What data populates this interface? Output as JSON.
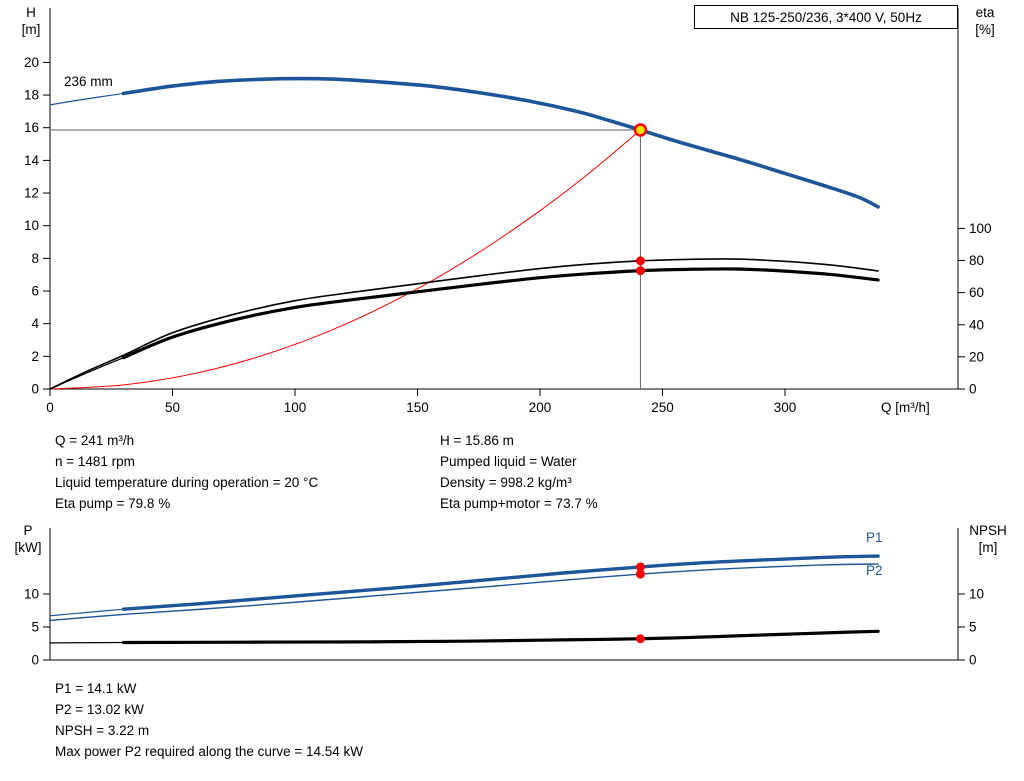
{
  "colors": {
    "curve_blue": "#1c5599",
    "curve_black": "#000000",
    "curve_red": "#ff0000",
    "marker": "#ff0000",
    "duty_fill": "#ffe600",
    "crosshair": "#666666"
  },
  "header": {
    "title_box": "NB 125-250/236, 3*400 V, 50Hz"
  },
  "top_chart_labels": {
    "y_left_1": "H",
    "y_left_2": "[m]",
    "y_right_1": "eta",
    "y_right_2": "[%]",
    "x_axis": "Q [m³/h]",
    "impeller": "236 mm"
  },
  "bottom_chart_labels": {
    "y_left_1": "P",
    "y_left_2": "[kW]",
    "y_right_1": "NPSH",
    "y_right_2": "[m]",
    "p1": "P1",
    "p2": "P2"
  },
  "operating_point_info": {
    "left": [
      "Q = 241 m³/h",
      "n = 1481 rpm",
      "Liquid temperature during operation = 20 °C",
      "Eta pump = 79.8 %"
    ],
    "right": [
      "H = 15.86 m",
      "Pumped liquid = Water",
      "Density = 998.2 kg/m³",
      "Eta pump+motor = 73.7 %"
    ]
  },
  "power_info": [
    "P1 = 14.1 kW",
    "P2 = 13.02 kW",
    "NPSH = 3.22 m",
    "Max power P2 required along the curve = 14.54 kW"
  ],
  "chart_data": [
    {
      "type": "line",
      "title": "QH and efficiency curves, NB 125-250/236",
      "xlabel": "Q [m³/h]",
      "ylabel_left": "H [m]",
      "ylabel_right": "eta [%]",
      "xlim": [
        0,
        370
      ],
      "ylim_left": [
        0,
        23.3
      ],
      "ylim_right": [
        0,
        237
      ],
      "x_ticks": [
        0,
        50,
        100,
        150,
        200,
        250,
        300
      ],
      "y_left_ticks": [
        0,
        2,
        4,
        6,
        8,
        10,
        12,
        14,
        16,
        18,
        20
      ],
      "y_right_ticks": [
        0,
        20,
        40,
        60,
        80,
        100
      ],
      "annotation": "236 mm",
      "series": [
        {
          "name": "qh-curve-lead",
          "axis": "left",
          "color": "#1c5599",
          "width": 1.2,
          "points": [
            [
              0,
              17.4
            ],
            [
              10,
              17.65
            ],
            [
              20,
              17.88
            ],
            [
              30,
              18.1
            ]
          ]
        },
        {
          "name": "qh-curve-236mm",
          "axis": "left",
          "color": "#1c5599",
          "width": 3.6,
          "points": [
            [
              30,
              18.1
            ],
            [
              50,
              18.55
            ],
            [
              70,
              18.85
            ],
            [
              95,
              19.0
            ],
            [
              115,
              18.98
            ],
            [
              135,
              18.8
            ],
            [
              155,
              18.55
            ],
            [
              175,
              18.15
            ],
            [
              195,
              17.65
            ],
            [
              215,
              17.0
            ],
            [
              228,
              16.45
            ],
            [
              241,
              15.86
            ],
            [
              255,
              15.2
            ],
            [
              270,
              14.55
            ],
            [
              285,
              13.9
            ],
            [
              300,
              13.2
            ],
            [
              315,
              12.5
            ],
            [
              330,
              11.75
            ],
            [
              338,
              11.15
            ]
          ]
        },
        {
          "name": "system-curve",
          "axis": "left",
          "color": "#ff0000",
          "width": 1,
          "points": [
            [
              0,
              0
            ],
            [
              30,
              0.25
            ],
            [
              60,
              0.98
            ],
            [
              90,
              2.21
            ],
            [
              120,
              3.93
            ],
            [
              150,
              6.14
            ],
            [
              175,
              8.36
            ],
            [
              200,
              10.92
            ],
            [
              220,
              13.21
            ],
            [
              241,
              15.86
            ]
          ]
        },
        {
          "name": "eta-pump-curve",
          "axis": "right",
          "color": "#000000",
          "width": 1.6,
          "points": [
            [
              0,
              0
            ],
            [
              15,
              11
            ],
            [
              30,
              21
            ],
            [
              50,
              35
            ],
            [
              75,
              46.5
            ],
            [
              100,
              55
            ],
            [
              125,
              60.5
            ],
            [
              150,
              65.5
            ],
            [
              175,
              70.5
            ],
            [
              200,
              75
            ],
            [
              220,
              77.8
            ],
            [
              241,
              79.8
            ],
            [
              260,
              80.7
            ],
            [
              280,
              80.9
            ],
            [
              300,
              79.5
            ],
            [
              320,
              77
            ],
            [
              338,
              73.5
            ]
          ]
        },
        {
          "name": "eta-pump-motor-lead",
          "axis": "right",
          "color": "#000000",
          "width": 1.2,
          "points": [
            [
              0,
              0
            ],
            [
              15,
              10
            ],
            [
              30,
              19.5
            ]
          ]
        },
        {
          "name": "eta-pump-motor-curve",
          "axis": "right",
          "color": "#000000",
          "width": 3.2,
          "points": [
            [
              30,
              19.5
            ],
            [
              50,
              32.3
            ],
            [
              75,
              43
            ],
            [
              100,
              50.8
            ],
            [
              125,
              55.9
            ],
            [
              150,
              60.5
            ],
            [
              175,
              65.1
            ],
            [
              200,
              69.3
            ],
            [
              220,
              71.8
            ],
            [
              241,
              73.7
            ],
            [
              260,
              74.5
            ],
            [
              280,
              74.7
            ],
            [
              300,
              73.4
            ],
            [
              320,
              71.1
            ],
            [
              338,
              67.9
            ]
          ]
        }
      ],
      "markers": [
        {
          "name": "duty-point",
          "q": 241,
          "value": 15.86,
          "axis": "left",
          "style": "duty"
        },
        {
          "name": "eta-pump-point",
          "q": 241,
          "value": 79.8,
          "axis": "right",
          "style": "dot"
        },
        {
          "name": "eta-pump-motor-point",
          "q": 241,
          "value": 73.7,
          "axis": "right",
          "style": "dot"
        }
      ]
    },
    {
      "type": "line",
      "title": "Power and NPSH curves",
      "xlabel": "Q [m³/h]",
      "ylabel_left": "P [kW]",
      "ylabel_right": "NPSH [m]",
      "xlim": [
        0,
        370
      ],
      "ylim_left": [
        0,
        20
      ],
      "ylim_right": [
        0,
        20
      ],
      "x_ticks": [],
      "y_left_ticks": [
        0,
        5,
        10
      ],
      "y_right_ticks": [
        0,
        5,
        10
      ],
      "series": [
        {
          "name": "p1-curve-lead",
          "axis": "left",
          "color": "#1c5599",
          "width": 1.2,
          "points": [
            [
              0,
              6.7
            ],
            [
              15,
              7.2
            ],
            [
              30,
              7.7
            ]
          ]
        },
        {
          "name": "p1-curve",
          "axis": "left",
          "color": "#1c5599",
          "width": 3.4,
          "points": [
            [
              30,
              7.7
            ],
            [
              60,
              8.5
            ],
            [
              100,
              9.7
            ],
            [
              140,
              10.9
            ],
            [
              180,
              12.2
            ],
            [
              210,
              13.2
            ],
            [
              241,
              14.1
            ],
            [
              270,
              14.8
            ],
            [
              300,
              15.3
            ],
            [
              320,
              15.6
            ],
            [
              338,
              15.75
            ]
          ]
        },
        {
          "name": "p2-curve",
          "axis": "left",
          "color": "#1c5599",
          "width": 1.4,
          "points": [
            [
              0,
              6.0
            ],
            [
              30,
              6.9
            ],
            [
              60,
              7.65
            ],
            [
              100,
              8.75
            ],
            [
              140,
              9.95
            ],
            [
              180,
              11.15
            ],
            [
              210,
              12.1
            ],
            [
              241,
              13.02
            ],
            [
              270,
              13.7
            ],
            [
              300,
              14.2
            ],
            [
              320,
              14.45
            ],
            [
              338,
              14.54
            ]
          ]
        },
        {
          "name": "npsh-curve-lead",
          "axis": "right",
          "color": "#000000",
          "width": 1.2,
          "points": [
            [
              0,
              2.6
            ],
            [
              30,
              2.65
            ]
          ]
        },
        {
          "name": "npsh-curve",
          "axis": "right",
          "color": "#000000",
          "width": 3.2,
          "points": [
            [
              30,
              2.65
            ],
            [
              80,
              2.7
            ],
            [
              130,
              2.75
            ],
            [
              170,
              2.85
            ],
            [
              200,
              3.0
            ],
            [
              220,
              3.1
            ],
            [
              241,
              3.22
            ],
            [
              260,
              3.4
            ],
            [
              280,
              3.65
            ],
            [
              300,
              3.9
            ],
            [
              320,
              4.15
            ],
            [
              338,
              4.35
            ]
          ]
        }
      ],
      "markers": [
        {
          "name": "p1-point",
          "q": 241,
          "value": 14.1,
          "axis": "left",
          "style": "dot"
        },
        {
          "name": "p2-point",
          "q": 241,
          "value": 13.02,
          "axis": "left",
          "style": "dot"
        },
        {
          "name": "npsh-point",
          "q": 241,
          "value": 3.22,
          "axis": "right",
          "style": "dot"
        }
      ]
    }
  ]
}
